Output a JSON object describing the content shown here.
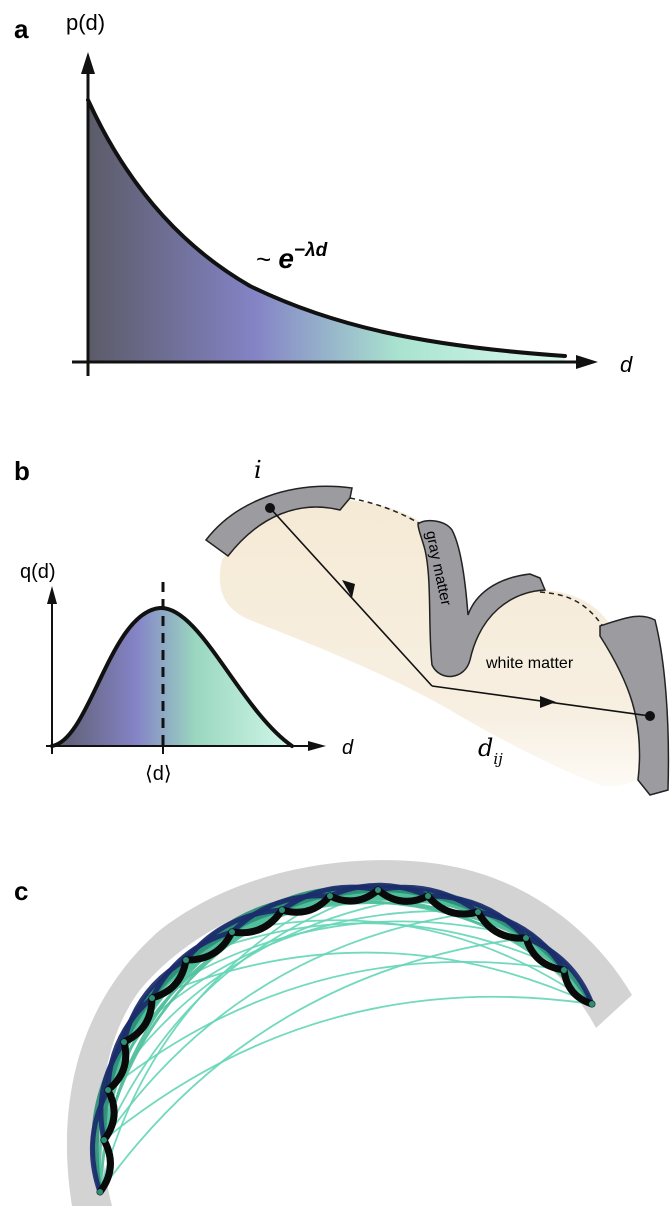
{
  "panel_a": {
    "label": "a",
    "y_axis_label": "p(d)",
    "x_axis_label": "d",
    "formula_prefix": "~ ",
    "formula_base": "e",
    "formula_exponent": "−λd"
  },
  "panel_b": {
    "label": "b",
    "y_axis_label": "q(d)",
    "x_axis_label": "d",
    "mean_label": "⟨d⟩",
    "node_i_label": "i",
    "distance_label": "d",
    "distance_subscript": "ij",
    "gray_matter_label": "gray matter",
    "white_matter_label": "white matter"
  },
  "panel_c": {
    "label": "c"
  },
  "colors": {
    "gradient_dark": "#5a5a6a",
    "gradient_mid": "#8583c4",
    "gradient_light": "#c8f5e4",
    "white_matter": "#f6ecd9",
    "gray_matter": "#9a9a9e",
    "arc_navy": "#1b2a6b",
    "arc_teal": "#2e8f77",
    "arc_mint": "#66d6b7"
  }
}
